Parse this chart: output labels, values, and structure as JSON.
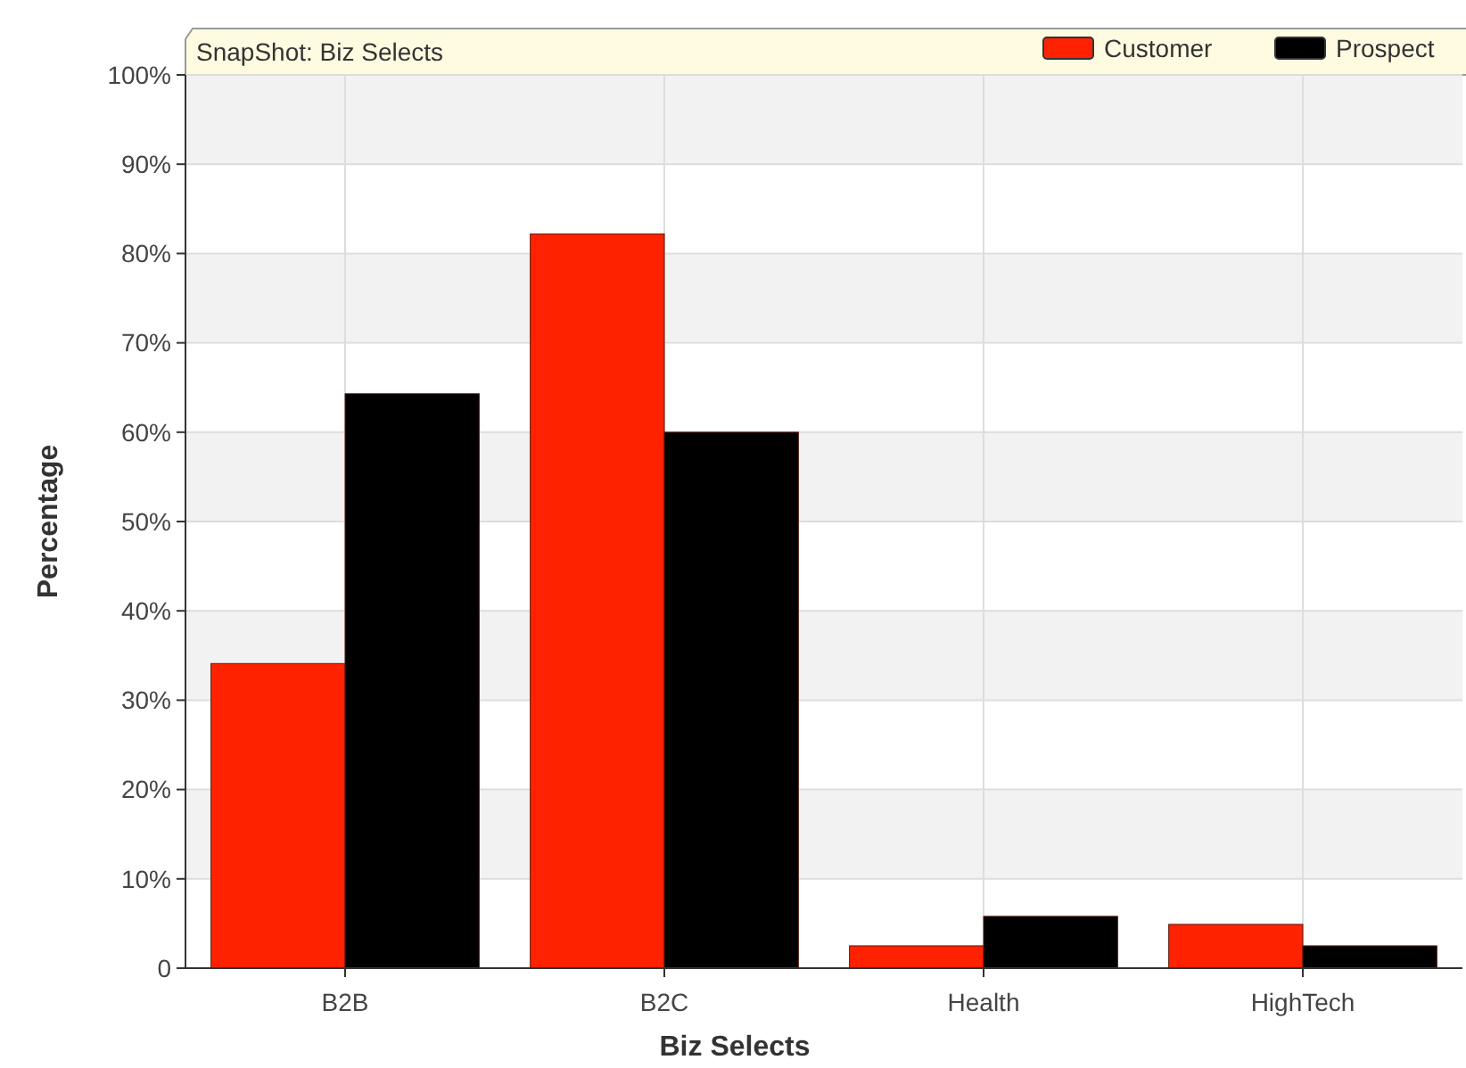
{
  "chart_data": {
    "type": "bar",
    "title": "SnapShot: Biz Selects",
    "xlabel": "Biz Selects",
    "ylabel": "Percentage",
    "categories": [
      "B2B",
      "B2C",
      "Health",
      "HighTech"
    ],
    "series": [
      {
        "name": "Customer",
        "color": "#ff2200",
        "values": [
          34.1,
          82.2,
          2.5,
          4.9
        ]
      },
      {
        "name": "Prospect",
        "color": "#000000",
        "values": [
          64.3,
          60,
          5.8,
          2.5
        ]
      }
    ],
    "ylim": [
      0,
      100
    ],
    "yticks": [
      {
        "value": 0,
        "label": "0"
      },
      {
        "value": 10,
        "label": "10%"
      },
      {
        "value": 20,
        "label": "20%"
      },
      {
        "value": 30,
        "label": "30%"
      },
      {
        "value": 40,
        "label": "40%"
      },
      {
        "value": 50,
        "label": "50%"
      },
      {
        "value": 60,
        "label": "60%"
      },
      {
        "value": 70,
        "label": "70%"
      },
      {
        "value": 80,
        "label": "80%"
      },
      {
        "value": 90,
        "label": "90%"
      },
      {
        "value": 100,
        "label": "100%"
      }
    ],
    "grid": true,
    "legend": "top right"
  }
}
